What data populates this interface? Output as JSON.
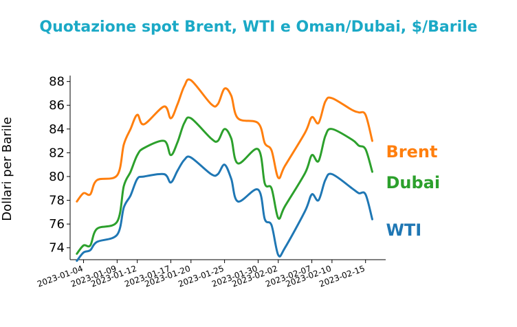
{
  "chart_data": {
    "type": "line",
    "title": "Quotazione spot Brent, WTI e Oman/Dubai, $/Barile",
    "xlabel": "",
    "ylabel": "Dollari per Barile",
    "ylim": [
      73,
      88.5
    ],
    "yticks": [
      "74",
      "76",
      "78",
      "80",
      "82",
      "84",
      "86",
      "88"
    ],
    "xticks": [
      "2023-01-04",
      "2023-01-09",
      "2023-01-12",
      "2023-01-17",
      "2023-01-20",
      "2023-01-25",
      "2023-01-30",
      "2023-02-02",
      "2023-02-07",
      "2023-02-10",
      "2023-02-15"
    ],
    "x": [
      "2023-01-03",
      "2023-01-04",
      "2023-01-05",
      "2023-01-06",
      "2023-01-09",
      "2023-01-10",
      "2023-01-11",
      "2023-01-12",
      "2023-01-13",
      "2023-01-16",
      "2023-01-17",
      "2023-01-18",
      "2023-01-19",
      "2023-01-20",
      "2023-01-23",
      "2023-01-24",
      "2023-01-25",
      "2023-01-26",
      "2023-01-27",
      "2023-01-30",
      "2023-01-31",
      "2023-02-01",
      "2023-02-02",
      "2023-02-03",
      "2023-02-06",
      "2023-02-07",
      "2023-02-08",
      "2023-02-09",
      "2023-02-10",
      "2023-02-13",
      "2023-02-14",
      "2023-02-15",
      "2023-02-16"
    ],
    "series": [
      {
        "name": "Brent",
        "color": "#ff7f0e",
        "values": [
          77.9,
          78.6,
          78.5,
          79.7,
          80.1,
          82.7,
          84.0,
          85.2,
          84.4,
          85.9,
          84.9,
          86.1,
          87.6,
          88.1,
          86.1,
          86.1,
          87.4,
          86.8,
          84.9,
          84.5,
          82.8,
          82.2,
          79.9,
          80.9,
          83.7,
          85.0,
          84.5,
          86.3,
          86.6,
          85.6,
          85.4,
          85.2,
          83.0
        ]
      },
      {
        "name": "Dubai",
        "color": "#2ca02c",
        "values": [
          73.5,
          74.2,
          74.2,
          75.6,
          76.2,
          79.2,
          80.4,
          81.8,
          82.4,
          83.0,
          81.8,
          82.9,
          84.5,
          84.9,
          83.2,
          83.0,
          84.0,
          83.2,
          81.1,
          82.3,
          79.4,
          79.0,
          76.5,
          77.5,
          80.3,
          81.8,
          81.3,
          83.4,
          84.0,
          83.1,
          82.6,
          82.3,
          80.4
        ]
      },
      {
        "name": "WTI",
        "color": "#1f77b4",
        "values": [
          72.9,
          73.6,
          73.8,
          74.5,
          75.1,
          77.4,
          78.4,
          79.8,
          80.0,
          80.2,
          79.5,
          80.5,
          81.4,
          81.6,
          80.2,
          80.2,
          81.0,
          79.8,
          77.9,
          78.9,
          76.4,
          75.9,
          73.4,
          74.0,
          77.1,
          78.5,
          78.0,
          79.7,
          80.2,
          79.0,
          78.6,
          78.5,
          76.4
        ]
      }
    ]
  }
}
